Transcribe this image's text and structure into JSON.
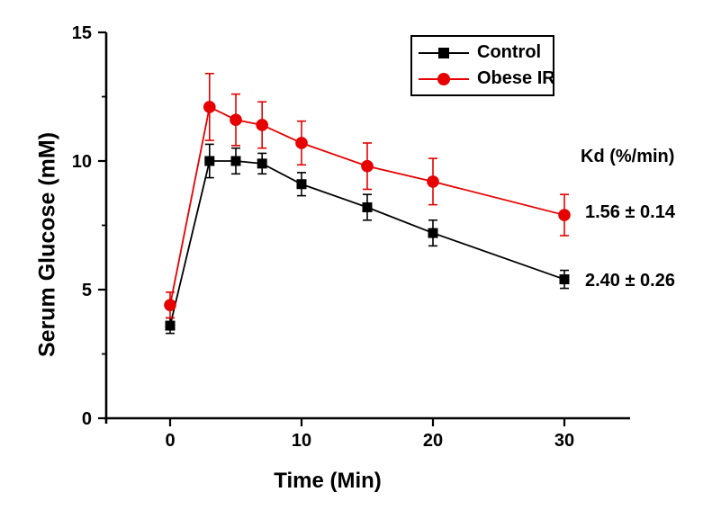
{
  "figure": {
    "background": "#ffffff",
    "axis_color": "#000000"
  },
  "chart_data": {
    "type": "line",
    "title": "",
    "xlabel": "Time (Min)",
    "ylabel": "Serum Glucose (mM)",
    "x": [
      0,
      3,
      5,
      7,
      10,
      15,
      20,
      30
    ],
    "series": [
      {
        "name": "Control",
        "color": "#000000",
        "marker": "square",
        "values": [
          3.6,
          10.0,
          10.0,
          9.9,
          9.1,
          8.2,
          7.2,
          5.4
        ],
        "errors": [
          0.3,
          0.65,
          0.5,
          0.4,
          0.45,
          0.5,
          0.5,
          0.35
        ],
        "kd_label": "2.40 ± 0.26"
      },
      {
        "name": "Obese IR",
        "color": "#e60000",
        "marker": "circle",
        "values": [
          4.4,
          12.1,
          11.6,
          11.4,
          10.7,
          9.8,
          9.2,
          7.9
        ],
        "errors": [
          0.5,
          1.3,
          1.0,
          0.9,
          0.85,
          0.9,
          0.9,
          0.8
        ],
        "kd_label": "1.56 ± 0.14"
      }
    ],
    "xlim": [
      -5,
      35
    ],
    "ylim": [
      0,
      15
    ],
    "x_ticks": [
      0,
      10,
      20,
      30
    ],
    "x_tick_labels": [
      "0",
      "10",
      "20",
      "30"
    ],
    "y_ticks": [
      0,
      5,
      10,
      15
    ],
    "y_tick_labels": [
      "0",
      "5",
      "10",
      "15"
    ],
    "y_minor_ticks": [
      2.5,
      7.5,
      12.5
    ],
    "grid": false,
    "legend_position": "top-right"
  },
  "legend": {
    "items": [
      {
        "label": "Control",
        "color": "#000000",
        "marker": "square"
      },
      {
        "label": "Obese IR",
        "color": "#e60000",
        "marker": "circle"
      }
    ]
  },
  "annotations": {
    "kd_title": "Kd  (%/min)",
    "obese_kd": "1.56 ± 0.14",
    "control_kd": "2.40 ± 0.26"
  }
}
